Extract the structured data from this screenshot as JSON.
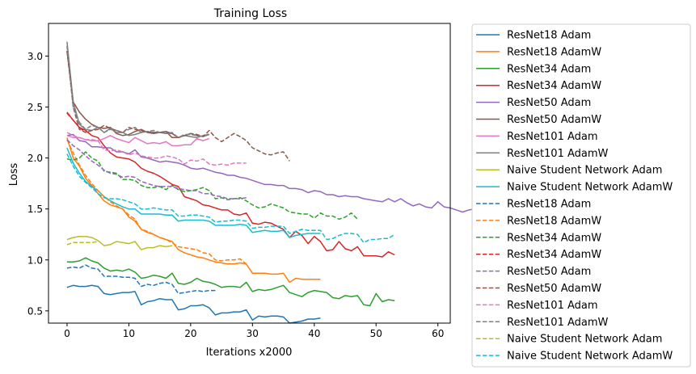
{
  "chart_data": {
    "type": "line",
    "title": "Training Loss",
    "xlabel": "Iterations x2000",
    "ylabel": "Loss",
    "xlim": [
      -3,
      62
    ],
    "ylim": [
      0.38,
      3.32
    ],
    "xticks": [
      0,
      10,
      20,
      30,
      40,
      50,
      60
    ],
    "yticks": [
      0.5,
      1.0,
      1.5,
      2.0,
      2.5,
      3.0
    ],
    "ytick_labels": [
      "0.5",
      "1.0",
      "1.5",
      "2.0",
      "2.5",
      "3.0"
    ],
    "grid": false,
    "legend_position": "outside-right",
    "series": [
      {
        "name": "ResNet18 Adam",
        "color": "#1f77b4",
        "dash": "solid",
        "values": [
          0.73,
          0.75,
          0.74,
          0.74,
          0.75,
          0.74,
          0.67,
          0.66,
          0.67,
          0.68,
          0.68,
          0.69,
          0.56,
          0.59,
          0.6,
          0.62,
          0.61,
          0.61,
          0.51,
          0.52,
          0.55,
          0.55,
          0.56,
          0.53,
          0.46,
          0.48,
          0.48,
          0.49,
          0.49,
          0.51,
          0.41,
          0.45,
          0.44,
          0.45,
          0.45,
          0.44,
          0.38,
          0.39,
          0.4,
          0.42,
          0.42,
          0.43
        ]
      },
      {
        "name": "ResNet18 AdamW",
        "color": "#ff7f0e",
        "dash": "solid",
        "values": [
          2.2,
          2.0,
          1.92,
          1.8,
          1.73,
          1.65,
          1.58,
          1.54,
          1.52,
          1.5,
          1.42,
          1.38,
          1.3,
          1.27,
          1.25,
          1.22,
          1.2,
          1.18,
          1.1,
          1.07,
          1.05,
          1.03,
          1.02,
          1.0,
          0.98,
          0.97,
          0.96,
          0.96,
          0.97,
          0.96,
          0.87,
          0.87,
          0.87,
          0.86,
          0.86,
          0.87,
          0.78,
          0.82,
          0.81,
          0.81,
          0.81,
          0.81
        ]
      },
      {
        "name": "ResNet34 Adam",
        "color": "#2ca02c",
        "dash": "solid",
        "values": [
          0.98,
          0.98,
          0.99,
          1.02,
          0.99,
          0.97,
          0.92,
          0.89,
          0.9,
          0.89,
          0.91,
          0.88,
          0.82,
          0.83,
          0.85,
          0.84,
          0.82,
          0.87,
          0.77,
          0.76,
          0.78,
          0.82,
          0.79,
          0.78,
          0.76,
          0.73,
          0.74,
          0.74,
          0.73,
          0.78,
          0.69,
          0.71,
          0.7,
          0.71,
          0.73,
          0.75,
          0.68,
          0.66,
          0.64,
          0.68,
          0.7,
          0.69,
          0.68,
          0.63,
          0.62,
          0.65,
          0.64,
          0.65,
          0.56,
          0.55,
          0.67,
          0.59,
          0.61,
          0.6
        ]
      },
      {
        "name": "ResNet34 AdamW",
        "color": "#d62728",
        "dash": "solid",
        "values": [
          2.45,
          2.37,
          2.3,
          2.27,
          2.22,
          2.2,
          2.12,
          2.05,
          2.01,
          2.0,
          1.99,
          1.96,
          1.9,
          1.87,
          1.85,
          1.82,
          1.78,
          1.74,
          1.72,
          1.62,
          1.6,
          1.58,
          1.54,
          1.53,
          1.51,
          1.49,
          1.49,
          1.45,
          1.44,
          1.46,
          1.36,
          1.35,
          1.37,
          1.36,
          1.33,
          1.3,
          1.22,
          1.28,
          1.24,
          1.16,
          1.23,
          1.18,
          1.09,
          1.1,
          1.18,
          1.11,
          1.09,
          1.13,
          1.04,
          1.04,
          1.04,
          1.03,
          1.08,
          1.05
        ]
      },
      {
        "name": "ResNet50 Adam",
        "color": "#9467bd",
        "dash": "solid",
        "values": [
          2.22,
          2.23,
          2.17,
          2.16,
          2.11,
          2.11,
          2.1,
          2.1,
          2.06,
          2.06,
          2.04,
          2.08,
          2.01,
          2.0,
          1.98,
          1.96,
          1.97,
          1.96,
          1.95,
          1.93,
          1.9,
          1.89,
          1.9,
          1.88,
          1.86,
          1.85,
          1.83,
          1.83,
          1.81,
          1.8,
          1.78,
          1.76,
          1.74,
          1.74,
          1.73,
          1.73,
          1.7,
          1.7,
          1.69,
          1.66,
          1.68,
          1.67,
          1.64,
          1.64,
          1.62,
          1.63,
          1.62,
          1.62,
          1.6,
          1.59,
          1.58,
          1.57,
          1.6,
          1.57,
          1.6,
          1.56,
          1.53,
          1.55,
          1.52,
          1.51,
          1.57,
          1.52,
          1.51,
          1.49,
          1.47,
          1.49,
          1.5,
          1.54
        ]
      },
      {
        "name": "ResNet50 AdamW",
        "color": "#8c564b",
        "dash": "solid",
        "values": [
          3.05,
          2.55,
          2.45,
          2.38,
          2.33,
          2.3,
          2.29,
          2.3,
          2.24,
          2.22,
          2.23,
          2.26,
          2.28,
          2.25,
          2.24,
          2.25,
          2.26,
          2.2,
          2.2,
          2.22,
          2.24,
          2.22,
          2.21,
          2.23
        ]
      },
      {
        "name": "ResNet101 Adam",
        "color": "#e377c2",
        "dash": "solid",
        "values": [
          2.22,
          2.2,
          2.2,
          2.18,
          2.17,
          2.17,
          2.19,
          2.22,
          2.19,
          2.17,
          2.15,
          2.2,
          2.17,
          2.14,
          2.15,
          2.14,
          2.16,
          2.12,
          2.12,
          2.13,
          2.13,
          2.19,
          2.17,
          2.19
        ]
      },
      {
        "name": "ResNet101 AdamW",
        "color": "#7f7f7f",
        "dash": "solid",
        "values": [
          3.14,
          2.55,
          2.33,
          2.28,
          2.27,
          2.3,
          2.25,
          2.29,
          2.25,
          2.25,
          2.22,
          2.23,
          2.25,
          2.26,
          2.25,
          2.25,
          2.24,
          2.24,
          2.2,
          2.22,
          2.21,
          2.2,
          2.22,
          2.23
        ]
      },
      {
        "name": "Naive Student Network Adam",
        "color": "#bcbd22",
        "dash": "solid",
        "values": [
          1.2,
          1.22,
          1.23,
          1.23,
          1.22,
          1.19,
          1.14,
          1.15,
          1.18,
          1.17,
          1.16,
          1.18,
          1.1,
          1.12,
          1.12,
          1.14,
          1.13,
          1.14
        ]
      },
      {
        "name": "Naive Student Network AdamW",
        "color": "#17becf",
        "dash": "solid",
        "values": [
          2.1,
          1.95,
          1.85,
          1.77,
          1.72,
          1.68,
          1.62,
          1.58,
          1.55,
          1.52,
          1.5,
          1.5,
          1.45,
          1.45,
          1.45,
          1.45,
          1.44,
          1.44,
          1.38,
          1.39,
          1.39,
          1.39,
          1.39,
          1.38,
          1.34,
          1.34,
          1.34,
          1.34,
          1.35,
          1.34,
          1.27,
          1.28,
          1.29,
          1.28,
          1.28,
          1.29,
          1.22,
          1.24,
          1.25,
          1.26,
          1.26,
          1.26
        ]
      },
      {
        "name": "ResNet18 Adam",
        "color": "#1f77b4",
        "dash": "dashed",
        "values": [
          0.92,
          0.93,
          0.92,
          0.95,
          0.92,
          0.91,
          0.84,
          0.84,
          0.84,
          0.83,
          0.83,
          0.82,
          0.74,
          0.76,
          0.75,
          0.77,
          0.78,
          0.76,
          0.67,
          0.68,
          0.69,
          0.7,
          0.69,
          0.7,
          0.7
        ]
      },
      {
        "name": "ResNet18 AdamW",
        "color": "#ff7f0e",
        "dash": "dashed",
        "values": [
          2.18,
          2.05,
          1.93,
          1.83,
          1.75,
          1.68,
          1.62,
          1.57,
          1.53,
          1.5,
          1.44,
          1.4,
          1.3,
          1.28,
          1.25,
          1.22,
          1.2,
          1.17,
          1.13,
          1.12,
          1.11,
          1.1,
          1.07,
          1.06,
          1.0,
          0.99,
          1.0,
          1.0,
          1.01,
          0.96
        ]
      },
      {
        "name": "ResNet34 AdamW",
        "color": "#2ca02c",
        "dash": "dashed",
        "values": [
          1.99,
          1.98,
          2.0,
          2.06,
          2.0,
          1.97,
          1.87,
          1.86,
          1.85,
          1.79,
          1.79,
          1.78,
          1.73,
          1.71,
          1.71,
          1.72,
          1.69,
          1.73,
          1.69,
          1.67,
          1.68,
          1.69,
          1.71,
          1.68,
          1.6,
          1.61,
          1.59,
          1.6,
          1.61,
          1.58,
          1.54,
          1.51,
          1.52,
          1.55,
          1.53,
          1.51,
          1.47,
          1.46,
          1.45,
          1.45,
          1.41,
          1.46,
          1.43,
          1.43,
          1.4,
          1.42,
          1.46,
          1.4
        ]
      },
      {
        "name": "ResNet34 AdamW",
        "color": "#d62728",
        "dash": "dashed",
        "values": [
          2.44,
          2.37,
          2.3,
          2.25
        ]
      },
      {
        "name": "ResNet50 Adam",
        "color": "#9467bd",
        "dash": "dashed",
        "values": [
          2.18,
          2.12,
          2.08,
          2.02,
          1.97,
          1.93,
          1.88,
          1.85,
          1.84,
          1.81,
          1.82,
          1.81,
          1.77,
          1.75,
          1.73,
          1.72,
          1.72,
          1.72,
          1.7,
          1.69,
          1.68,
          1.68,
          1.65,
          1.65,
          1.63,
          1.62,
          1.6,
          1.6,
          1.6,
          1.61
        ]
      },
      {
        "name": "ResNet50 AdamW",
        "color": "#8c564b",
        "dash": "dashed",
        "values": [
          3.05,
          2.5,
          2.28,
          2.25,
          2.27,
          2.28,
          2.32,
          2.29,
          2.27,
          2.25,
          2.3,
          2.28,
          2.27,
          2.25,
          2.25,
          2.25,
          2.26,
          2.24,
          2.2,
          2.22,
          2.24,
          2.23,
          2.21,
          2.27,
          2.2,
          2.16,
          2.2,
          2.24,
          2.21,
          2.17,
          2.1,
          2.07,
          2.04,
          2.03,
          2.05,
          2.06,
          1.97
        ]
      },
      {
        "name": "ResNet101 Adam",
        "color": "#e377c2",
        "dash": "dashed",
        "values": [
          2.25,
          2.22,
          2.2,
          2.18,
          2.18,
          2.17,
          2.08,
          2.07,
          2.08,
          2.06,
          2.03,
          2.05,
          2.02,
          2.01,
          2.0,
          2.0,
          2.02,
          2.01,
          1.99,
          1.94,
          1.98,
          1.97,
          1.99,
          1.94,
          1.93,
          1.94,
          1.93,
          1.95,
          1.95,
          1.95
        ]
      },
      {
        "name": "ResNet101 AdamW",
        "color": "#7f7f7f",
        "dash": "dashed",
        "values": [
          3.1,
          2.5,
          2.35,
          2.28,
          2.32,
          2.3,
          2.25,
          2.28,
          2.27,
          2.25,
          2.28,
          2.3,
          2.25,
          2.26,
          2.27,
          2.25,
          2.24,
          2.25,
          2.2,
          2.23,
          2.23,
          2.22,
          2.21,
          2.24
        ]
      },
      {
        "name": "Naive Student Network Adam",
        "color": "#bcbd22",
        "dash": "dashed",
        "values": [
          1.15,
          1.17,
          1.17,
          1.17,
          1.17,
          1.18
        ]
      },
      {
        "name": "Naive Student Network AdamW",
        "color": "#17becf",
        "dash": "dashed",
        "values": [
          2.04,
          1.92,
          1.82,
          1.76,
          1.71,
          1.65,
          1.61,
          1.6,
          1.6,
          1.59,
          1.57,
          1.55,
          1.5,
          1.5,
          1.51,
          1.5,
          1.49,
          1.49,
          1.43,
          1.43,
          1.44,
          1.44,
          1.43,
          1.42,
          1.37,
          1.38,
          1.38,
          1.39,
          1.39,
          1.38,
          1.31,
          1.32,
          1.32,
          1.33,
          1.33,
          1.33,
          1.26,
          1.28,
          1.3,
          1.29,
          1.29,
          1.29,
          1.2,
          1.21,
          1.24,
          1.26,
          1.26,
          1.25,
          1.17,
          1.2,
          1.2,
          1.21,
          1.21,
          1.25
        ]
      }
    ]
  }
}
